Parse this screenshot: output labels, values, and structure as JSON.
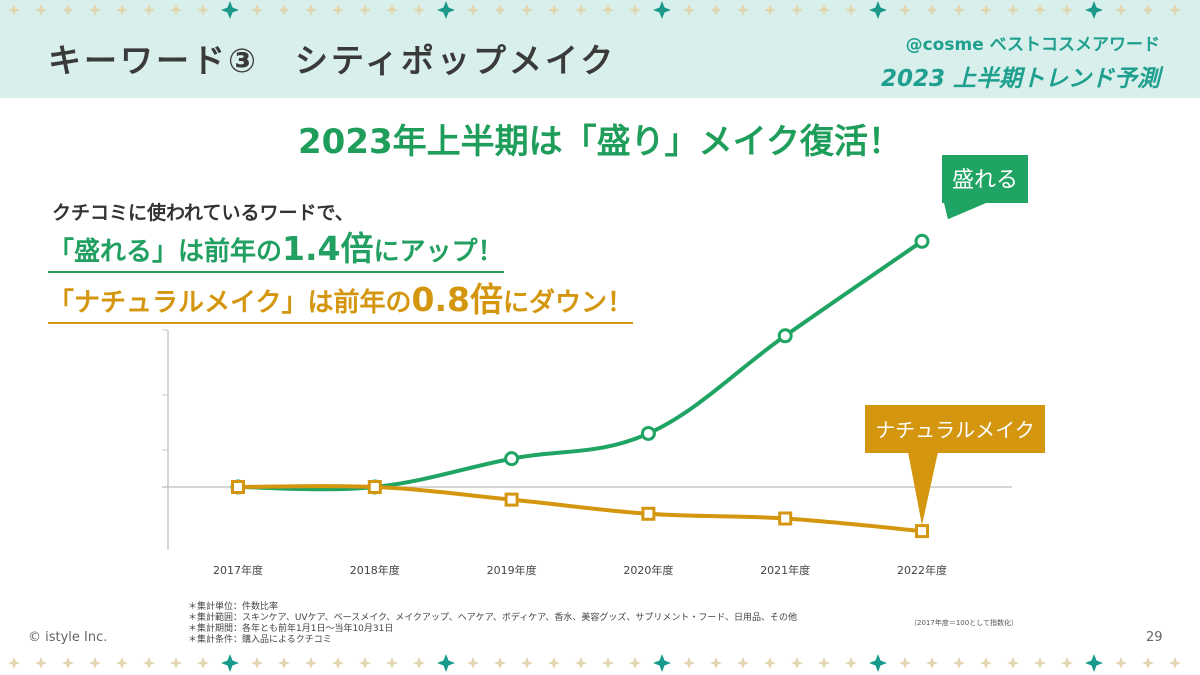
{
  "header": {
    "title": "キーワード③　シティポップメイク",
    "brand_line1": "@cosme ベストコスメアワード",
    "brand_line2": "2023 上半期トレンド予測"
  },
  "headline": "2023年上半期は「盛り」メイク復活！",
  "intro": "クチコミに使われているワードで、",
  "highlight_a": {
    "pre": "「盛れる」は前年の",
    "big": "1.4倍",
    "post": "にアップ！"
  },
  "highlight_b": {
    "pre": "「ナチュラルメイク」は前年の",
    "big": "0.8倍",
    "post": "にダウン！"
  },
  "chart_data": {
    "type": "line",
    "categories": [
      "2017年度",
      "2018年度",
      "2019年度",
      "2020年度",
      "2021年度",
      "2022年度"
    ],
    "ylim": [
      60,
      260
    ],
    "baseline": 100,
    "series": [
      {
        "name": "盛れる",
        "values": [
          100,
          100,
          118,
          134,
          196,
          256
        ],
        "color": "#1fa463",
        "marker": "circle"
      },
      {
        "name": "ナチュラルメイク",
        "values": [
          100,
          100,
          92,
          83,
          80,
          72
        ],
        "color": "#d4960e",
        "marker": "square"
      }
    ]
  },
  "footer": {
    "copyright": "© istyle Inc.",
    "page": "29",
    "notes": [
      "＊集計単位：件数比率",
      "＊集計範囲：スキンケア、UVケア、ベースメイク、メイクアップ、ヘアケア、ボディケア、香水、美容グッズ、サプリメント・フード、日用品、その他",
      "＊集計期間：各年とも前年1月1日～当年10月31日",
      "＊集計条件：購入品によるクチコミ"
    ],
    "index_note": "（2017年度＝100として指数化）"
  },
  "colors": {
    "header_bg": "#d9efec",
    "teal": "#1f9f8e",
    "green": "#1fa463",
    "gold": "#d4960e"
  }
}
